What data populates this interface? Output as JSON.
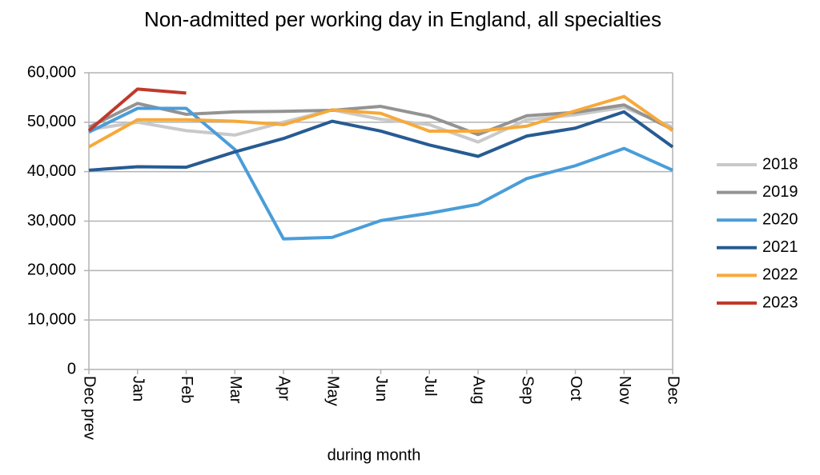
{
  "chart_data": {
    "type": "line",
    "title": "Non-admitted per working day in England, all specialties",
    "x_label": "during  month",
    "categories": [
      "Dec prev",
      "Jan",
      "Feb",
      "Mar",
      "Apr",
      "May",
      "Jun",
      "Jul",
      "Aug",
      "Sep",
      "Oct",
      "Nov",
      "Dec"
    ],
    "series": [
      {
        "name": "2018",
        "color": "#c9c9c9",
        "values": [
          48500,
          50000,
          48300,
          47400,
          50000,
          52500,
          50600,
          49500,
          46000,
          50500,
          51500,
          53000,
          49000
        ]
      },
      {
        "name": "2019",
        "color": "#939393",
        "values": [
          49000,
          53800,
          51600,
          52100,
          52200,
          52400,
          53200,
          51200,
          47500,
          51300,
          52000,
          53500,
          48500
        ]
      },
      {
        "name": "2020",
        "color": "#4a9dd9",
        "values": [
          48000,
          52800,
          52800,
          44500,
          26400,
          26700,
          30100,
          31600,
          33400,
          38600,
          41200,
          44700,
          40300
        ]
      },
      {
        "name": "2021",
        "color": "#275b92",
        "values": [
          40300,
          41000,
          40900,
          44000,
          46700,
          50200,
          48200,
          45400,
          43100,
          47200,
          48800,
          52100,
          45000
        ]
      },
      {
        "name": "2022",
        "color": "#f6a93b",
        "values": [
          45000,
          50500,
          50500,
          50200,
          49500,
          52500,
          51800,
          48200,
          48200,
          49200,
          52300,
          55200,
          48300
        ]
      },
      {
        "name": "2023",
        "color": "#c0392b",
        "values": [
          48300,
          56700,
          55900,
          null,
          null,
          null,
          null,
          null,
          null,
          null,
          null,
          null,
          null
        ]
      }
    ],
    "ylim": [
      0,
      60000
    ],
    "yticks": [
      0,
      {
        "value": 10000,
        "label": "10,000"
      },
      {
        "value": 20000,
        "label": "20,000"
      },
      {
        "value": 30000,
        "label": "30,000"
      },
      {
        "value": 40000,
        "label": "40,000"
      },
      {
        "value": 50000,
        "label": "50,000"
      },
      {
        "value": 60000,
        "label": "60,000"
      }
    ],
    "grid": true,
    "legend": "right"
  }
}
